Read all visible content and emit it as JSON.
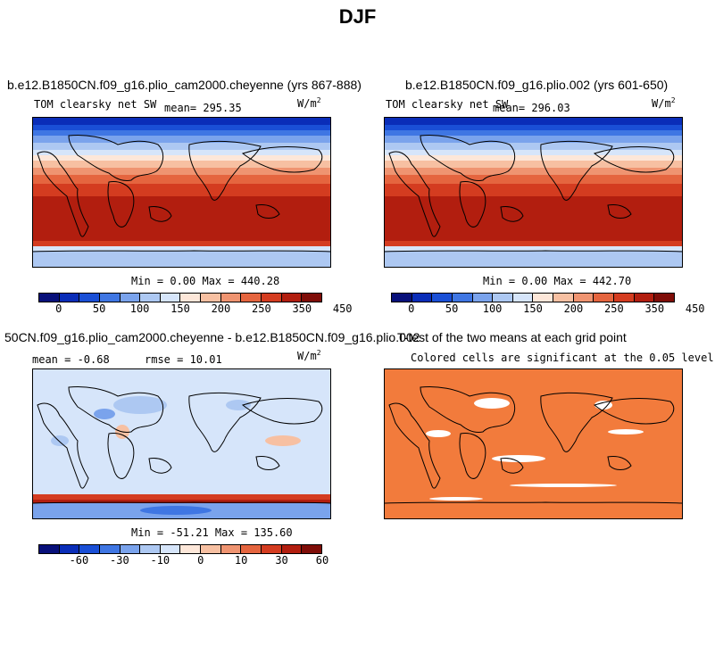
{
  "season_title": "DJF",
  "colors": {
    "sw_scale": [
      "#08107a",
      "#0a2db8",
      "#1a4fd6",
      "#3f76e3",
      "#7aa3ec",
      "#adc8f2",
      "#d6e5fa",
      "#fde7d9",
      "#f7c0a2",
      "#ef9471",
      "#e5653f",
      "#d43c20",
      "#b21e0f",
      "#7f0d08"
    ],
    "diff_scale": [
      "#08107a",
      "#0a2db8",
      "#1a4fd6",
      "#3f76e3",
      "#7aa3ec",
      "#adc8f2",
      "#d6e5fa",
      "#fde7d9",
      "#f7c0a2",
      "#ef9471",
      "#e5653f",
      "#d43c20",
      "#b21e0f",
      "#7f0d08"
    ],
    "significant": "#f27b3c"
  },
  "panels": {
    "p1": {
      "title": "b.e12.B1850CN.f09_g16.plio_cam2000.cheyenne (yrs 867-888)",
      "variable": "TOM clearsky net SW",
      "mean_text": "mean= 295.35",
      "units_base": "W/m",
      "units_exp": "2",
      "min_max": "Min =   0.00 Max = 440.28",
      "colorbar_labels": [
        "0",
        "50",
        "100",
        "150",
        "200",
        "250",
        "350",
        "450"
      ]
    },
    "p2": {
      "title": "b.e12.B1850CN.f09_g16.plio.002 (yrs 601-650)",
      "variable": "TOM clearsky net SW",
      "mean_text": "mean= 296.03",
      "units_base": "W/m",
      "units_exp": "2",
      "min_max": "Min =   0.00 Max = 442.70",
      "colorbar_labels": [
        "0",
        "50",
        "100",
        "150",
        "200",
        "250",
        "350",
        "450"
      ]
    },
    "p3": {
      "title": "50CN.f09_g16.plio_cam2000.cheyenne - b.e12.B1850CN.f09_g16.plio.002",
      "mean_text": "mean =   -0.68",
      "rmse_text": "rmse =   10.01",
      "units_base": "W/m",
      "units_exp": "2",
      "min_max": "Min = -51.21 Max = 135.60",
      "colorbar_labels": [
        "-60",
        "-30",
        "-10",
        "0",
        "10",
        "30",
        "60"
      ]
    },
    "p4": {
      "title": "T-test of the two means at each grid point",
      "subtitle": "Colored cells are significant at the 0.05 level"
    }
  },
  "chart_data": [
    {
      "type": "heatmap",
      "title": "b.e12.B1850CN.f09_g16.plio_cam2000.cheyenne (yrs 867-888)",
      "variable": "TOM clearsky net SW",
      "units": "W/m2",
      "mean": 295.35,
      "min": 0.0,
      "max": 440.28,
      "colorbar_levels": [
        0,
        50,
        100,
        150,
        200,
        250,
        350,
        450
      ],
      "zonal_pattern": "low (blue) at high northern latitudes, ~450 over southern tropics/subtropics, high over Southern Ocean, low over Antarctica"
    },
    {
      "type": "heatmap",
      "title": "b.e12.B1850CN.f09_g16.plio.002 (yrs 601-650)",
      "variable": "TOM clearsky net SW",
      "units": "W/m2",
      "mean": 296.03,
      "min": 0.0,
      "max": 442.7,
      "colorbar_levels": [
        0,
        50,
        100,
        150,
        200,
        250,
        350,
        450
      ]
    },
    {
      "type": "heatmap",
      "title": "50CN.f09_g16.plio_cam2000.cheyenne - b.e12.B1850CN.f09_g16.plio.002",
      "units": "W/m2",
      "mean": -0.68,
      "rmse": 10.01,
      "min": -51.21,
      "max": 135.6,
      "colorbar_levels": [
        -60,
        -30,
        -10,
        0,
        10,
        30,
        60
      ]
    },
    {
      "type": "heatmap",
      "title": "T-test of the two means at each grid point",
      "subtitle": "Colored cells are significant at the 0.05 level"
    }
  ]
}
